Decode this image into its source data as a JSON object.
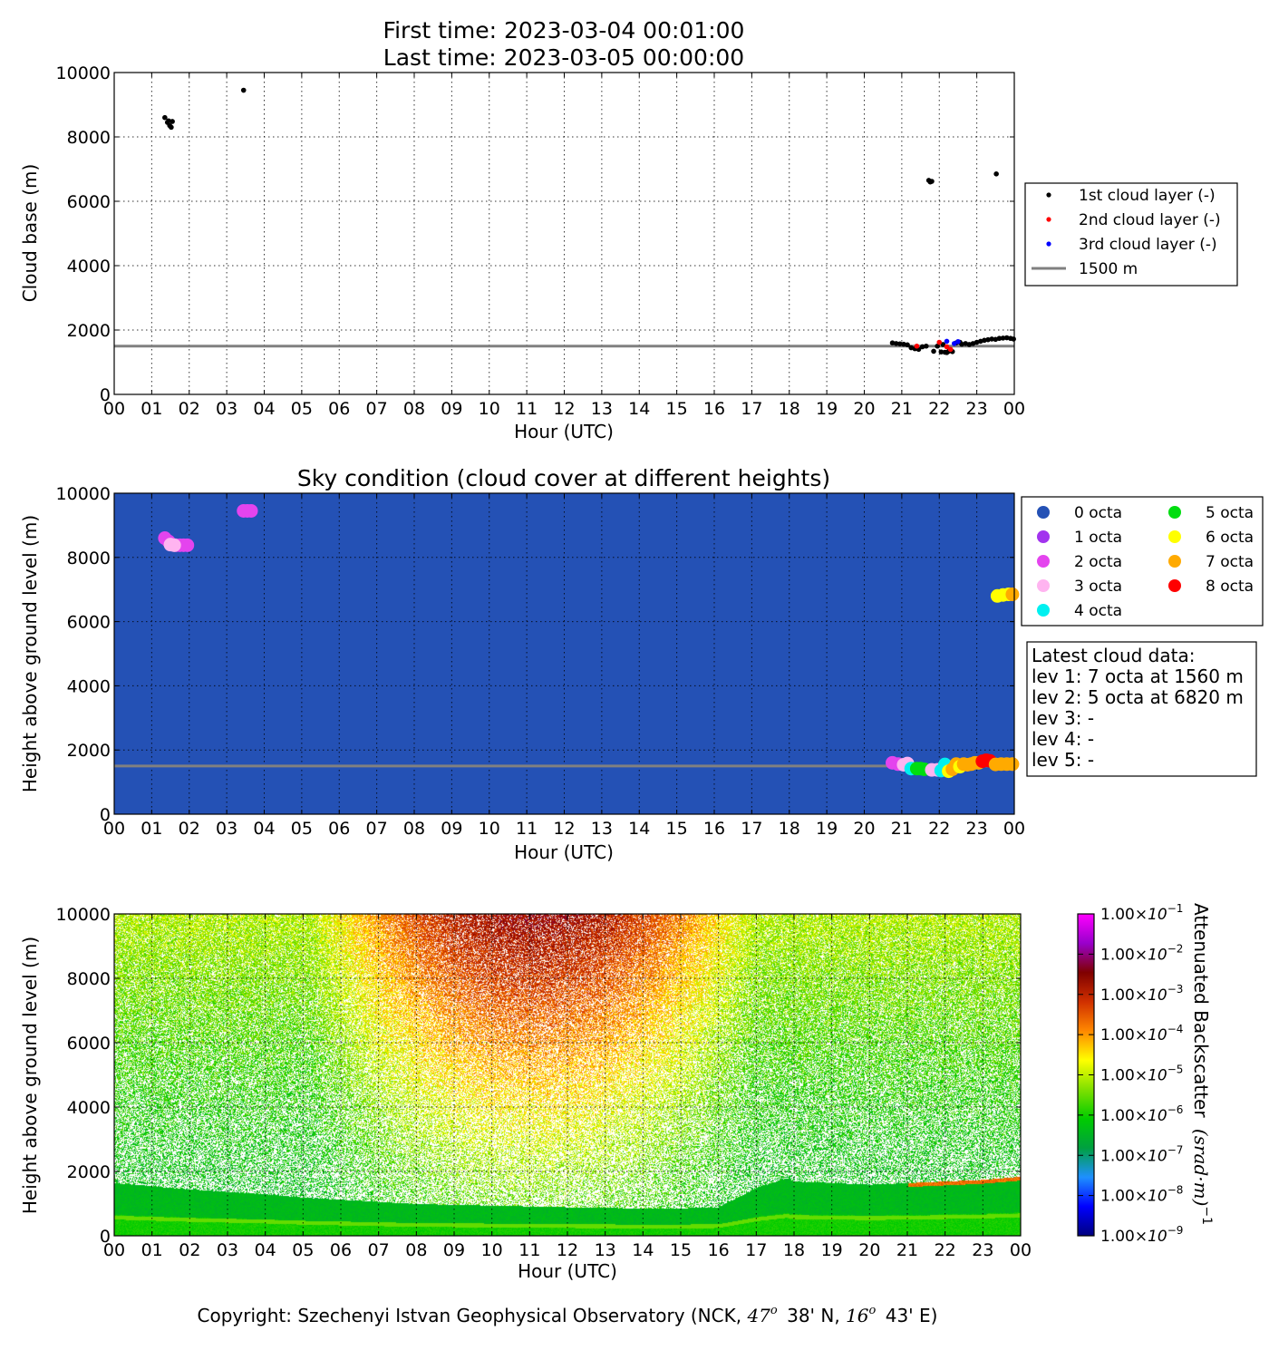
{
  "header": {
    "first_time": "First time: 2023-03-04 00:01:00",
    "last_time": "Last time: 2023-03-05 00:00:00"
  },
  "colors": {
    "sky_background": "#2451b5",
    "line_1500": "#808080",
    "layer1": "#000000",
    "layer2": "#ff0000",
    "layer3": "#0000ff"
  },
  "chart_data": [
    {
      "type": "scatter",
      "title": "",
      "xlabel": "Hour (UTC)",
      "ylabel": "Cloud base (m)",
      "xlim": [
        0,
        24
      ],
      "ylim": [
        0,
        10000
      ],
      "x_tick_labels": [
        "00",
        "01",
        "02",
        "03",
        "04",
        "05",
        "06",
        "07",
        "08",
        "09",
        "10",
        "11",
        "12",
        "13",
        "14",
        "15",
        "16",
        "17",
        "18",
        "19",
        "20",
        "21",
        "22",
        "23",
        "00"
      ],
      "y_ticks": [
        0,
        2000,
        4000,
        6000,
        8000,
        10000
      ],
      "grid": true,
      "legend_position": "right",
      "hline": {
        "name": "1500 m",
        "y": 1500
      },
      "series": [
        {
          "name": "1st cloud layer (-)",
          "color": "#000000",
          "points": [
            [
              1.35,
              8600
            ],
            [
              1.42,
              8450
            ],
            [
              1.48,
              8350
            ],
            [
              1.52,
              8300
            ],
            [
              1.55,
              8480
            ],
            [
              1.45,
              8500
            ],
            [
              3.45,
              9450
            ],
            [
              20.75,
              1600
            ],
            [
              20.85,
              1580
            ],
            [
              20.95,
              1570
            ],
            [
              21.05,
              1560
            ],
            [
              21.15,
              1540
            ],
            [
              21.25,
              1450
            ],
            [
              21.35,
              1420
            ],
            [
              21.45,
              1400
            ],
            [
              21.55,
              1480
            ],
            [
              21.65,
              1500
            ],
            [
              21.72,
              6650
            ],
            [
              21.76,
              6600
            ],
            [
              21.8,
              6620
            ],
            [
              21.85,
              1340
            ],
            [
              21.95,
              1500
            ],
            [
              22.05,
              1320
            ],
            [
              22.1,
              1550
            ],
            [
              22.15,
              1310
            ],
            [
              22.2,
              1300
            ],
            [
              22.25,
              1340
            ],
            [
              22.3,
              1380
            ],
            [
              22.35,
              1330
            ],
            [
              22.45,
              1600
            ],
            [
              22.55,
              1620
            ],
            [
              22.6,
              1560
            ],
            [
              22.7,
              1580
            ],
            [
              22.8,
              1550
            ],
            [
              22.9,
              1580
            ],
            [
              23.0,
              1620
            ],
            [
              23.1,
              1650
            ],
            [
              23.2,
              1680
            ],
            [
              23.3,
              1700
            ],
            [
              23.4,
              1720
            ],
            [
              23.5,
              1710
            ],
            [
              23.52,
              6850
            ],
            [
              23.6,
              1740
            ],
            [
              23.7,
              1750
            ],
            [
              23.8,
              1760
            ],
            [
              23.9,
              1740
            ],
            [
              23.98,
              1720
            ]
          ]
        },
        {
          "name": "2nd cloud layer (-)",
          "color": "#ff0000",
          "points": [
            [
              21.4,
              1500
            ],
            [
              22.0,
              1620
            ],
            [
              22.2,
              1480
            ],
            [
              22.3,
              1400
            ]
          ]
        },
        {
          "name": "3rd cloud layer (-)",
          "color": "#0000ff",
          "points": [
            [
              22.2,
              1650
            ],
            [
              22.4,
              1580
            ],
            [
              22.5,
              1640
            ]
          ]
        }
      ]
    },
    {
      "type": "scatter",
      "title": "Sky condition (cloud cover at different heights)",
      "xlabel": "Hour (UTC)",
      "ylabel": "Height above ground level (m)",
      "xlim": [
        0,
        24
      ],
      "ylim": [
        0,
        10000
      ],
      "x_tick_labels": [
        "00",
        "01",
        "02",
        "03",
        "04",
        "05",
        "06",
        "07",
        "08",
        "09",
        "10",
        "11",
        "12",
        "13",
        "14",
        "15",
        "16",
        "17",
        "18",
        "19",
        "20",
        "21",
        "22",
        "23",
        "00"
      ],
      "y_ticks": [
        0,
        2000,
        4000,
        6000,
        8000,
        10000
      ],
      "grid": true,
      "legend_position": "right",
      "hline": {
        "name": "",
        "y": 1500
      },
      "legend": [
        {
          "label": "0 octa",
          "color": "#2451b5"
        },
        {
          "label": "1 octa",
          "color": "#a233ee"
        },
        {
          "label": "2 octa",
          "color": "#e444ee"
        },
        {
          "label": "3 octa",
          "color": "#ffb4f0"
        },
        {
          "label": "4 octa",
          "color": "#00f0f0"
        },
        {
          "label": "5 octa",
          "color": "#00dd10"
        },
        {
          "label": "6 octa",
          "color": "#ffff00"
        },
        {
          "label": "7 octa",
          "color": "#ffaa00"
        },
        {
          "label": "8 octa",
          "color": "#ff0000"
        }
      ],
      "points": [
        {
          "x": 1.35,
          "y": 8600,
          "c": "#e444ee"
        },
        {
          "x": 1.45,
          "y": 8500,
          "c": "#e444ee"
        },
        {
          "x": 1.55,
          "y": 8400,
          "c": "#e444ee"
        },
        {
          "x": 1.65,
          "y": 8380,
          "c": "#e444ee"
        },
        {
          "x": 1.75,
          "y": 8380,
          "c": "#e444ee"
        },
        {
          "x": 1.85,
          "y": 8380,
          "c": "#e444ee"
        },
        {
          "x": 1.95,
          "y": 8380,
          "c": "#e444ee"
        },
        {
          "x": 1.5,
          "y": 8400,
          "c": "#ffb4f0"
        },
        {
          "x": 1.6,
          "y": 8380,
          "c": "#ffb4f0"
        },
        {
          "x": 3.45,
          "y": 9450,
          "c": "#e444ee"
        },
        {
          "x": 3.55,
          "y": 9450,
          "c": "#e444ee"
        },
        {
          "x": 3.65,
          "y": 9450,
          "c": "#e444ee"
        },
        {
          "x": 20.75,
          "y": 1600,
          "c": "#e444ee"
        },
        {
          "x": 20.9,
          "y": 1560,
          "c": "#e444ee"
        },
        {
          "x": 21.05,
          "y": 1540,
          "c": "#ffb4f0"
        },
        {
          "x": 21.15,
          "y": 1580,
          "c": "#ffb4f0"
        },
        {
          "x": 21.25,
          "y": 1420,
          "c": "#00f0f0"
        },
        {
          "x": 21.4,
          "y": 1420,
          "c": "#00dd10"
        },
        {
          "x": 21.5,
          "y": 1420,
          "c": "#00dd10"
        },
        {
          "x": 21.6,
          "y": 1400,
          "c": "#00dd10"
        },
        {
          "x": 21.8,
          "y": 1380,
          "c": "#ffb4f0"
        },
        {
          "x": 21.95,
          "y": 1380,
          "c": "#ffb4f0"
        },
        {
          "x": 22.05,
          "y": 1360,
          "c": "#00f0f0"
        },
        {
          "x": 22.15,
          "y": 1550,
          "c": "#00f0f0"
        },
        {
          "x": 22.25,
          "y": 1340,
          "c": "#ffff00"
        },
        {
          "x": 22.35,
          "y": 1400,
          "c": "#ffaa00"
        },
        {
          "x": 22.45,
          "y": 1560,
          "c": "#ffaa00"
        },
        {
          "x": 22.55,
          "y": 1480,
          "c": "#ffff00"
        },
        {
          "x": 22.65,
          "y": 1560,
          "c": "#ffaa00"
        },
        {
          "x": 22.75,
          "y": 1540,
          "c": "#ffaa00"
        },
        {
          "x": 22.85,
          "y": 1560,
          "c": "#ffaa00"
        },
        {
          "x": 22.95,
          "y": 1600,
          "c": "#ffaa00"
        },
        {
          "x": 23.05,
          "y": 1600,
          "c": "#ffaa00"
        },
        {
          "x": 23.15,
          "y": 1650,
          "c": "#ff0000"
        },
        {
          "x": 23.25,
          "y": 1680,
          "c": "#ff0000"
        },
        {
          "x": 23.35,
          "y": 1660,
          "c": "#ff0000"
        },
        {
          "x": 23.5,
          "y": 1550,
          "c": "#ffaa00"
        },
        {
          "x": 23.65,
          "y": 1560,
          "c": "#ffaa00"
        },
        {
          "x": 23.8,
          "y": 1560,
          "c": "#ffaa00"
        },
        {
          "x": 23.95,
          "y": 1560,
          "c": "#ffaa00"
        },
        {
          "x": 23.55,
          "y": 6800,
          "c": "#ffff00"
        },
        {
          "x": 23.7,
          "y": 6830,
          "c": "#ffff00"
        },
        {
          "x": 23.85,
          "y": 6850,
          "c": "#ffff00"
        },
        {
          "x": 23.95,
          "y": 6850,
          "c": "#ffaa00"
        }
      ],
      "info_box": {
        "title": "Latest cloud data:",
        "lines": [
          "lev 1: 7 octa at 1560 m",
          "lev 2: 5 octa at 6820 m",
          "lev 3: -",
          "lev 4: -",
          "lev 5: -"
        ]
      }
    },
    {
      "type": "heatmap",
      "title": "",
      "xlabel": "Hour (UTC)",
      "ylabel": "Height above ground level (m)",
      "xlim": [
        0,
        24
      ],
      "ylim": [
        0,
        10000
      ],
      "x_tick_labels": [
        "00",
        "01",
        "02",
        "03",
        "04",
        "05",
        "06",
        "07",
        "08",
        "09",
        "10",
        "11",
        "12",
        "13",
        "14",
        "15",
        "16",
        "17",
        "18",
        "19",
        "20",
        "21",
        "22",
        "23",
        "00"
      ],
      "y_ticks": [
        0,
        2000,
        4000,
        6000,
        8000,
        10000
      ],
      "grid": true,
      "colorbar": {
        "label": "Attenuated Backscatter",
        "unit_label": "(srad·m)",
        "unit_exponent": "−1",
        "scale": "log",
        "range": [
          1e-09,
          0.1
        ],
        "tick_mantissa": "1.00",
        "tick_exponents": [
          "−9",
          "−8",
          "−7",
          "−6",
          "−5",
          "−4",
          "−3",
          "−2",
          "−1"
        ],
        "colors": [
          "#00007f",
          "#0000ff",
          "#1e90ff",
          "#00a040",
          "#00cc00",
          "#80e000",
          "#ffff00",
          "#ff8800",
          "#d03000",
          "#7f0000",
          "#9900cc",
          "#ff00ff"
        ]
      },
      "boundary_layer_top_m": [
        [
          0,
          1650
        ],
        [
          2,
          1450
        ],
        [
          4,
          1300
        ],
        [
          5,
          1200
        ],
        [
          8,
          1000
        ],
        [
          12,
          900
        ],
        [
          14.5,
          850
        ],
        [
          16,
          900
        ],
        [
          16.5,
          1200
        ],
        [
          17,
          1500
        ],
        [
          17.8,
          1800
        ],
        [
          18,
          1700
        ],
        [
          20,
          1600
        ],
        [
          21,
          1650
        ],
        [
          22,
          1700
        ],
        [
          23,
          1750
        ],
        [
          24,
          1850
        ]
      ],
      "copyright": {
        "prefix": "Copyright: Szechenyi Istvan Geophysical Observatory (NCK,",
        "lat_deg": "47",
        "lat_min": "38' N,",
        "lon_deg": "16",
        "lon_min": "43' E)",
        "degree_mark": "o"
      }
    }
  ]
}
